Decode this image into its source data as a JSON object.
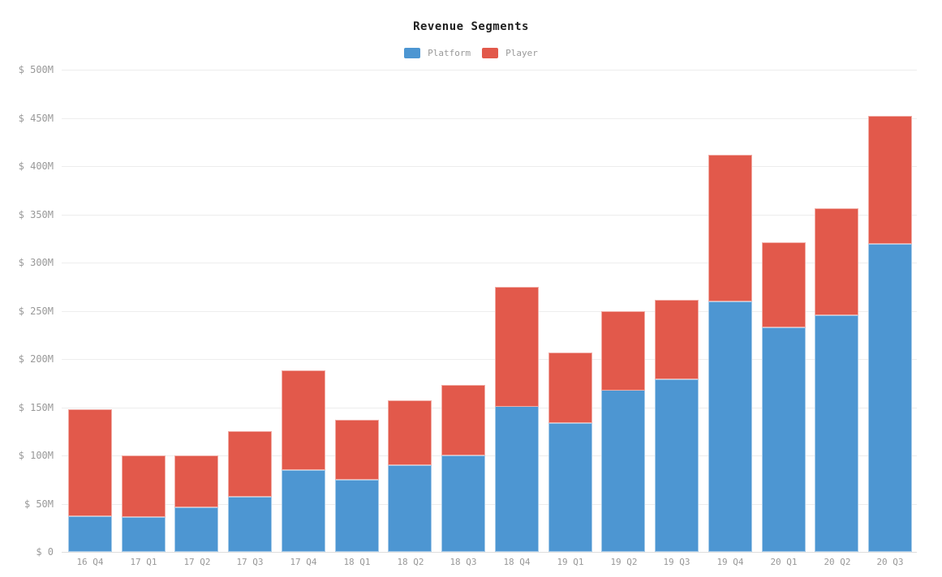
{
  "page": {
    "background": "#ffffff"
  },
  "chart_data": {
    "type": "bar",
    "stacked": true,
    "title": "Revenue Segments",
    "categories": [
      "16 Q4",
      "17 Q1",
      "17 Q2",
      "17 Q3",
      "17 Q4",
      "18 Q1",
      "18 Q2",
      "18 Q3",
      "18 Q4",
      "19 Q1",
      "19 Q2",
      "19 Q3",
      "19 Q4",
      "20 Q1",
      "20 Q2",
      "20 Q3"
    ],
    "series": [
      {
        "name": "Platform",
        "color": "#4d96d2",
        "values": [
          37,
          36,
          46,
          57,
          85,
          75,
          90,
          100,
          151,
          134,
          168,
          179,
          260,
          233,
          245,
          319
        ]
      },
      {
        "name": "Player",
        "color": "#e2594b",
        "values": [
          111,
          64,
          54,
          68,
          103,
          62,
          67,
          73,
          124,
          73,
          82,
          82,
          152,
          88,
          111,
          133
        ]
      }
    ],
    "totals": [
      148,
      100,
      100,
      125,
      188,
      137,
      157,
      173,
      275,
      207,
      250,
      261,
      412,
      321,
      356,
      452
    ],
    "value_unit": "USD millions",
    "ylim": [
      0,
      500
    ],
    "y_tick_interval": 50,
    "y_ticks": [
      "$ 0",
      "$ 50M",
      "$ 100M",
      "$ 150M",
      "$ 200M",
      "$ 250M",
      "$ 300M",
      "$ 350M",
      "$ 400M",
      "$ 450M",
      "$ 500M"
    ],
    "xlabel": "",
    "ylabel": "",
    "grid": "horizontal",
    "legend_position": "top-center",
    "colors": {
      "grid": "#ededed",
      "zero_line": "#dedede",
      "axis_text": "#999999",
      "title_text": "#1f1f1f",
      "background": "#ffffff"
    }
  }
}
